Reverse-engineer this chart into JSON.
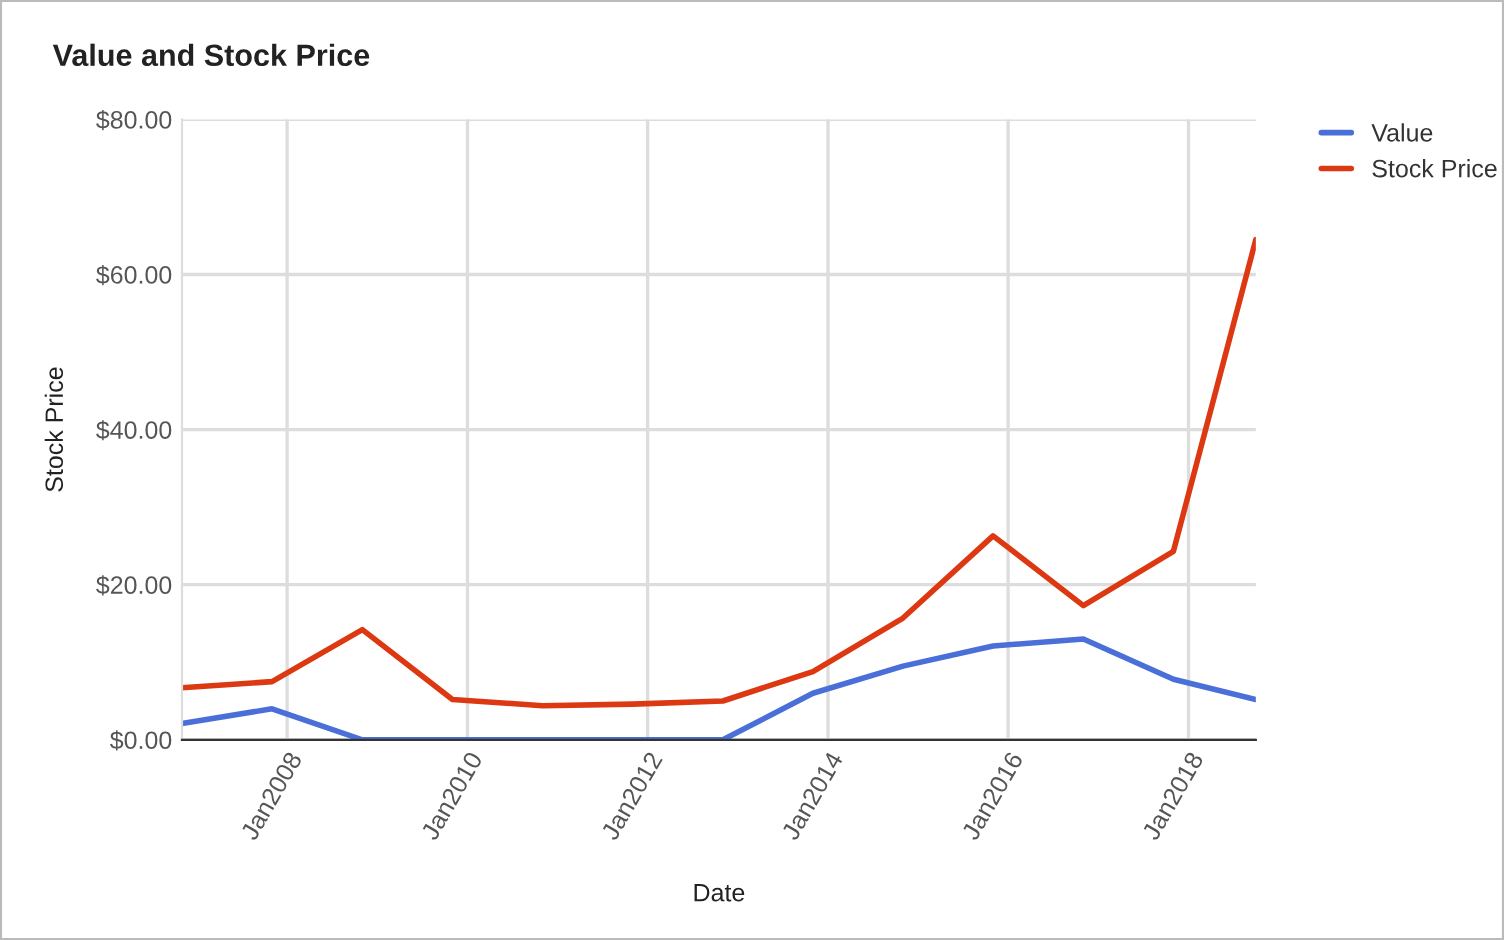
{
  "chart_data": {
    "type": "line",
    "title": "Value and Stock Price",
    "xlabel": "Date",
    "ylabel": "Stock Price",
    "x": [
      "2006-11",
      "2007-11",
      "2008-11",
      "2009-11",
      "2010-11",
      "2011-11",
      "2012-11",
      "2013-11",
      "2014-11",
      "2015-11",
      "2016-11",
      "2017-11",
      "2018-10"
    ],
    "series": [
      {
        "name": "Value",
        "color": "#4a6fd9",
        "values": [
          2.1,
          4.0,
          0,
          0,
          0,
          0,
          0,
          6.0,
          9.5,
          12.1,
          13.0,
          7.8,
          5.2
        ]
      },
      {
        "name": "Stock Price",
        "color": "#dc3912",
        "values": [
          6.7,
          7.5,
          14.2,
          5.2,
          4.4,
          4.6,
          5.0,
          8.8,
          15.7,
          26.3,
          17.3,
          24.3,
          64.5
        ]
      }
    ],
    "xlim": [
      "2006-11",
      "2018-10"
    ],
    "xticks": [
      {
        "value": "2008-01",
        "label": "Jan2008"
      },
      {
        "value": "2010-01",
        "label": "Jan2010"
      },
      {
        "value": "2012-01",
        "label": "Jan2012"
      },
      {
        "value": "2014-01",
        "label": "Jan2014"
      },
      {
        "value": "2016-01",
        "label": "Jan2016"
      },
      {
        "value": "2018-01",
        "label": "Jan2018"
      }
    ],
    "ylim": [
      0,
      80
    ],
    "yticks": [
      {
        "value": 0,
        "label": "$0.00"
      },
      {
        "value": 20,
        "label": "$20.00"
      },
      {
        "value": 40,
        "label": "$40.00"
      },
      {
        "value": 60,
        "label": "$60.00"
      },
      {
        "value": 80,
        "label": "$80.00"
      }
    ],
    "grid": true,
    "legend": "top right",
    "line_style": "solid",
    "marker": "none"
  }
}
